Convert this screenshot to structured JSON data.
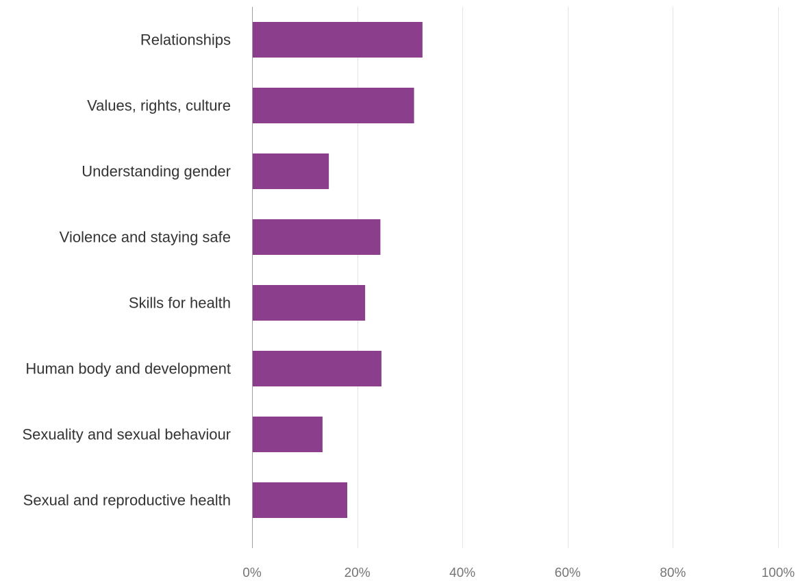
{
  "chart_data": {
    "type": "bar",
    "orientation": "horizontal",
    "categories": [
      "Relationships",
      "Values, rights, culture",
      "Understanding gender",
      "Violence and staying safe",
      "Skills for health",
      "Human body and development",
      "Sexuality and sexual behaviour",
      "Sexual and reproductive health"
    ],
    "values": [
      32.4,
      30.8,
      14.6,
      24.4,
      21.5,
      24.6,
      13.4,
      18.1
    ],
    "xlim": [
      0,
      100
    ],
    "x_ticks": [
      0,
      20,
      40,
      60,
      80,
      100
    ],
    "x_tick_labels": [
      "0%",
      "20%",
      "40%",
      "60%",
      "80%",
      "100%"
    ],
    "grid": "vertical",
    "legend": "none",
    "title": "",
    "xlabel": "",
    "ylabel": ""
  },
  "colors": {
    "bar": "#8b3e8b",
    "grid": "#e3e3e3",
    "axis": "#9e9e9e",
    "category_text": "#333333",
    "tick_text": "#757575"
  }
}
